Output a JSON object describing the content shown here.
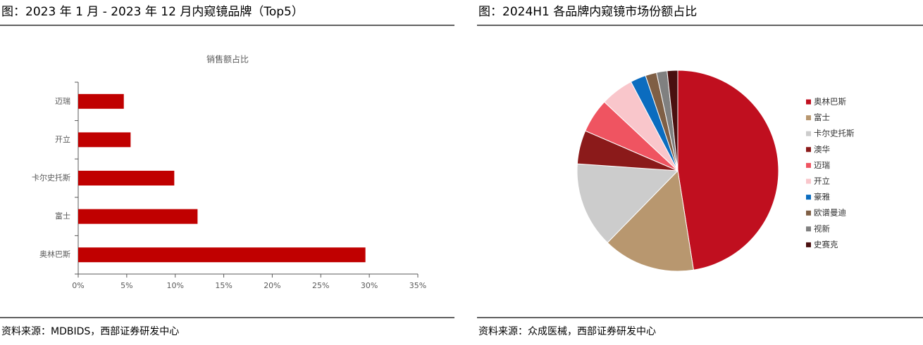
{
  "chart_data": [
    {
      "type": "hbar",
      "title": "图：2023 年 1 月  - 2023 年 12 月内窥镜品牌（Top5）",
      "subtitle": "销售额占比",
      "source": "资料来源：MDBIDS，西部证券研发中心",
      "categories": [
        "迈瑞",
        "开立",
        "卡尔史托斯",
        "富士",
        "奥林巴斯"
      ],
      "values": [
        4.7,
        5.4,
        9.9,
        12.3,
        29.6
      ],
      "color": "#c00000",
      "xlim": [
        0,
        35
      ],
      "xticks": [
        {
          "value": 0,
          "label": "0%"
        },
        {
          "value": 5,
          "label": "5%"
        },
        {
          "value": 10,
          "label": "10%"
        },
        {
          "value": 15,
          "label": "15%"
        },
        {
          "value": 20,
          "label": "20%"
        },
        {
          "value": 25,
          "label": "25%"
        },
        {
          "value": 30,
          "label": "30%"
        },
        {
          "value": 35,
          "label": "35%"
        }
      ]
    },
    {
      "type": "pie",
      "title": "图：2024H1 各品牌内窥镜市场份额占比",
      "source": "资料来源：众成医械，西部证券研发中心",
      "categories": [
        "奥林巴斯",
        "富士",
        "卡尔史托斯",
        "澳华",
        "迈瑞",
        "开立",
        "豪雅",
        "欧谱曼迪",
        "视新",
        "史赛克"
      ],
      "values": [
        47.5,
        14.8,
        13.8,
        5.4,
        5.5,
        5.3,
        2.5,
        1.8,
        1.7,
        1.7
      ],
      "colors": [
        "#c00f1f",
        "#b8976f",
        "#cccccc",
        "#8b1a1a",
        "#ef5461",
        "#f9c6cb",
        "#0b6cbf",
        "#7f5f45",
        "#808080",
        "#4a1010"
      ]
    }
  ]
}
